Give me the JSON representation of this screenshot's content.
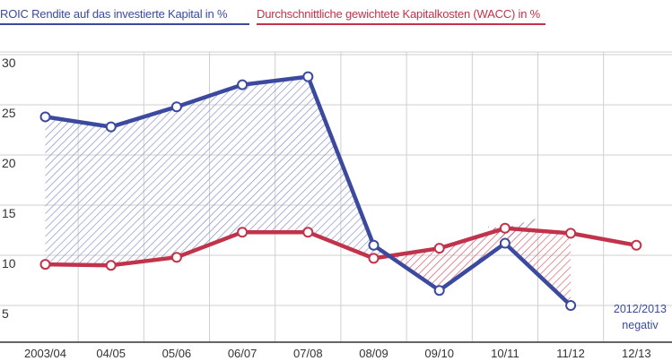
{
  "chart_data": {
    "type": "line",
    "categories": [
      "2003/04",
      "04/05",
      "05/06",
      "06/07",
      "07/08",
      "08/09",
      "09/10",
      "10/11",
      "11/12",
      "12/13"
    ],
    "series": [
      {
        "name": "ROIC Rendite auf das investierte Kapital in %",
        "color": "#3b4a9e",
        "values": [
          23.8,
          22.8,
          24.8,
          27.0,
          27.8,
          11.0,
          6.5,
          11.2,
          5.0,
          null
        ]
      },
      {
        "name": "Durchschnittliche gewichtete Kapitalkosten (WACC) in %",
        "color": "#c0334a",
        "values": [
          9.1,
          9.0,
          9.8,
          12.3,
          12.3,
          9.7,
          10.7,
          12.7,
          12.2,
          11.0
        ]
      }
    ],
    "yticks": [
      5,
      10,
      15,
      20,
      25,
      30
    ],
    "ylim": [
      3,
      32
    ],
    "grid": true
  },
  "legend": {
    "roic": "ROIC Rendite auf das investierte Kapital in %",
    "wacc": "Durchschnittliche gewichtete Kapitalkosten (WACC) in %"
  },
  "note": {
    "line1": "2012/2013",
    "line2": "negativ"
  },
  "colors": {
    "roic": "#3b4a9e",
    "wacc": "#c0334a",
    "grid": "#cfcfcf",
    "axis": "#333333",
    "text": "#333333"
  }
}
